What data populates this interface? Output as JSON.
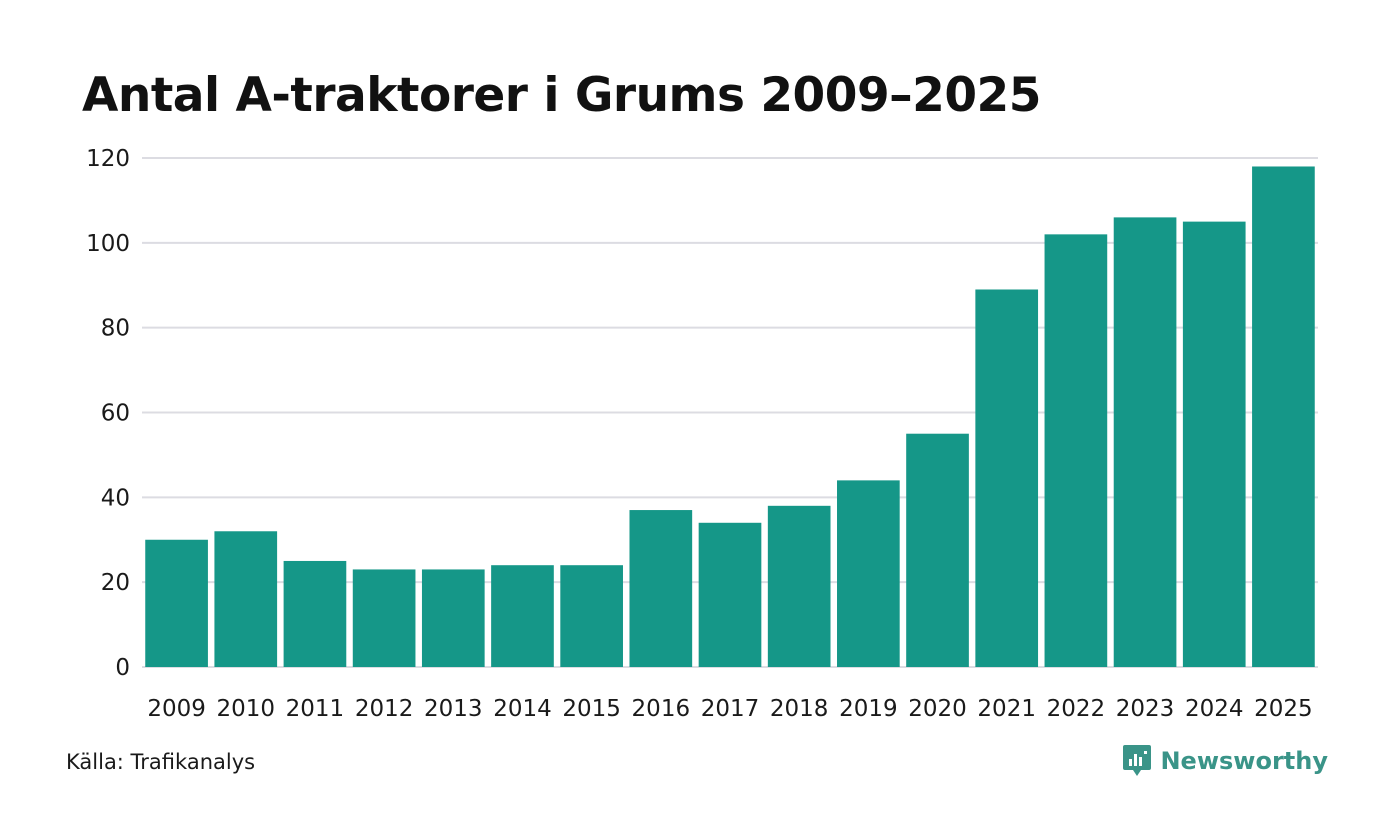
{
  "title": "Antal A-traktorer i Grums 2009–2025",
  "source": "Källa: Trafikanalys",
  "brand": {
    "name": "Newsworthy",
    "icon": "newsworthy-logo-icon",
    "color": "#3a9488"
  },
  "colors": {
    "bar": "#159788",
    "grid": "#dcdce2"
  },
  "chart_data": {
    "type": "bar",
    "title": "Antal A-traktorer i Grums 2009–2025",
    "xlabel": "",
    "ylabel": "",
    "categories": [
      "2009",
      "2010",
      "2011",
      "2012",
      "2013",
      "2014",
      "2015",
      "2016",
      "2017",
      "2018",
      "2019",
      "2020",
      "2021",
      "2022",
      "2023",
      "2024",
      "2025"
    ],
    "values": [
      30,
      32,
      25,
      23,
      23,
      24,
      24,
      37,
      34,
      38,
      44,
      55,
      89,
      102,
      106,
      105,
      118
    ],
    "ylim": [
      0,
      120
    ],
    "yticks": [
      0,
      20,
      40,
      60,
      80,
      100,
      120
    ],
    "grid": true,
    "legend": "none"
  }
}
